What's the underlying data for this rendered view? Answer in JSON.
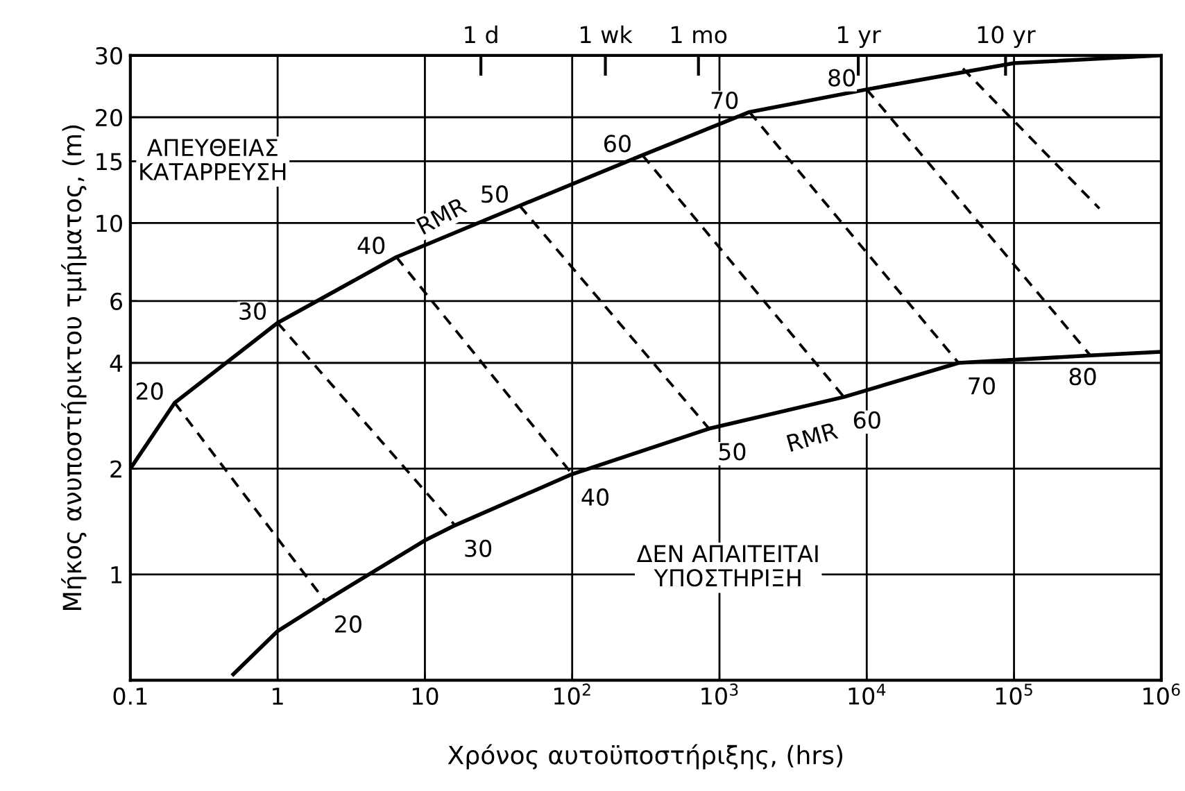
{
  "chart_data": {
    "type": "line",
    "xlabel": "Χρόνος αυτοϋποστήριξης, (hrs)",
    "ylabel": "Μήκος ανυποστήρικτου τμήματος, (m)",
    "log": "xy",
    "grid": true,
    "legend": false,
    "marker": "none",
    "xlim": [
      0.1,
      1000000
    ],
    "xticks": [
      {
        "value": 0.1,
        "label": "0.1"
      },
      1,
      10,
      {
        "value": 100,
        "label": "10$^{2}$"
      },
      {
        "value": 1000,
        "label": "10$^{3}$"
      },
      {
        "value": 10000,
        "label": "10$^{4}$"
      },
      {
        "value": 100000,
        "label": "10$^{5}$"
      },
      {
        "value": 1000000,
        "label": "10$^{6}$"
      }
    ],
    "ylim": [
      0.5,
      30
    ],
    "yticks": [
      1,
      2,
      4,
      6,
      10,
      15,
      20,
      30
    ],
    "series": [
      {
        "color": "#000000",
        "line_style": "solid",
        "x": [
          0.1,
          0.2,
          1,
          6.4,
          44,
          300,
          1600,
          10000,
          100000,
          1000000
        ],
        "values": [
          2,
          3.08,
          5.2,
          8,
          11.2,
          15.6,
          20.7,
          24,
          28.5,
          30
        ]
      },
      {
        "color": "#000000",
        "line_style": "solid",
        "x": [
          0.5,
          1,
          2.1,
          10,
          16,
          100,
          850,
          7000,
          42000,
          330000,
          1000000
        ],
        "values": [
          0.52,
          0.69,
          0.84,
          1.25,
          1.38,
          1.93,
          2.6,
          3.2,
          4.0,
          4.2,
          4.3
        ]
      },
      {
        "color": "#000000",
        "line_style": "dashed",
        "x": [
          0.2,
          2.1
        ],
        "values": [
          3.08,
          0.84
        ]
      },
      {
        "color": "#000000",
        "line_style": "dashed",
        "x": [
          1,
          16
        ],
        "values": [
          5.2,
          1.38
        ]
      },
      {
        "color": "#000000",
        "line_style": "dashed",
        "x": [
          6.4,
          100
        ],
        "values": [
          8,
          1.93
        ]
      },
      {
        "color": "#000000",
        "line_style": "dashed",
        "x": [
          44,
          850
        ],
        "values": [
          11.2,
          2.6
        ]
      },
      {
        "color": "#000000",
        "line_style": "dashed",
        "x": [
          300,
          7000
        ],
        "values": [
          15.6,
          3.2
        ]
      },
      {
        "color": "#000000",
        "line_style": "dashed",
        "x": [
          1600,
          42000
        ],
        "values": [
          20.7,
          4.0
        ]
      },
      {
        "color": "#000000",
        "line_style": "dashed",
        "x": [
          10000,
          330000
        ],
        "values": [
          24,
          4.2
        ]
      },
      {
        "color": "#000000",
        "line_style": "dashed",
        "x": [
          45000,
          380000
        ],
        "values": [
          27.5,
          11
        ]
      }
    ],
    "annotations": [
      {
        "text": "20",
        "x": 0.2,
        "y": 3.08
      },
      {
        "text": "30",
        "x": 1,
        "y": 5.2
      },
      {
        "text": "40",
        "x": 6.4,
        "y": 8
      },
      {
        "text": "50",
        "x": 44,
        "y": 11.2
      },
      {
        "text": "60",
        "x": 300,
        "y": 15.6
      },
      {
        "text": "70",
        "x": 1600,
        "y": 20.7
      },
      {
        "text": "80",
        "x": 10000,
        "y": 24
      },
      {
        "text": "20",
        "x": 2.1,
        "y": 0.84
      },
      {
        "text": "30",
        "x": 16,
        "y": 1.38
      },
      {
        "text": "40",
        "x": 100,
        "y": 1.93
      },
      {
        "text": "50",
        "x": 850,
        "y": 2.6
      },
      {
        "text": "60",
        "x": 7000,
        "y": 3.2
      },
      {
        "text": "70",
        "x": 42000,
        "y": 4.0
      },
      {
        "text": "80",
        "x": 330000,
        "y": 4.2
      },
      {
        "text": "RMR",
        "x": 11.6,
        "y": 8.9
      },
      {
        "text": "RMR",
        "x": 2800,
        "y": 2.9
      },
      "ΑΠΕΥΘΕΙΑΣ\nΚΑΤΑΡΡΕΥΣΗ",
      "ΔΕΝ ΑΠΑΙΤΕΙΤΑΙ\nΥΠΟΣΤΗΡΙΞΗ"
    ],
    "ref_lines": [
      {
        "axis": "x",
        "value": 24,
        "label": "1 d"
      },
      {
        "axis": "x",
        "value": 168,
        "label": "1 wk"
      },
      {
        "axis": "x",
        "value": 720,
        "label": "1 mo"
      },
      {
        "axis": "x",
        "value": 8760,
        "label": "1 yr"
      },
      {
        "axis": "x",
        "value": 87600,
        "label": "10 yr"
      }
    ]
  }
}
